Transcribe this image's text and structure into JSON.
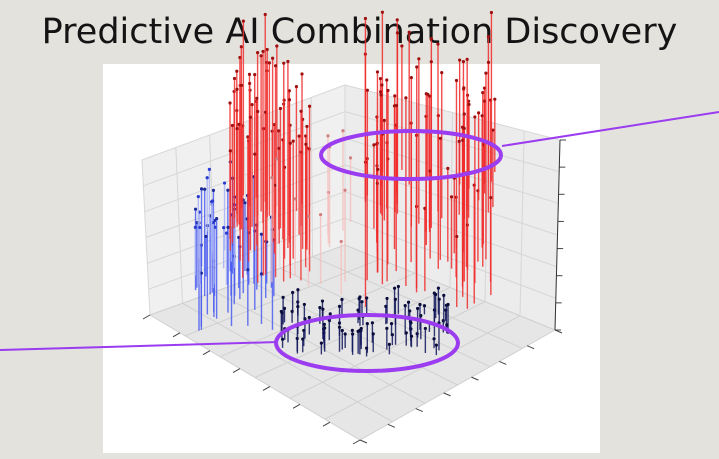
{
  "slide": {
    "title": "Predictive AI Combination Discovery",
    "background": "#e3e2dd"
  },
  "plot": {
    "type": "3D stem plot",
    "background": "#ffffff",
    "pane_color": "#f0f0f0",
    "grid": true,
    "axis_labels_visible": false,
    "tick_labels_visible": false,
    "colormap": [
      "#12165a",
      "#3b4cf0",
      "#f5f5f5",
      "#f01818"
    ]
  },
  "annotations": [
    {
      "name": "highlight-top-red-cluster",
      "shape": "ellipse",
      "color": "#9b3cf0",
      "callout_direction": "right"
    },
    {
      "name": "highlight-bottom-dark-cluster",
      "shape": "ellipse",
      "color": "#9b3cf0",
      "callout_direction": "left"
    }
  ]
}
